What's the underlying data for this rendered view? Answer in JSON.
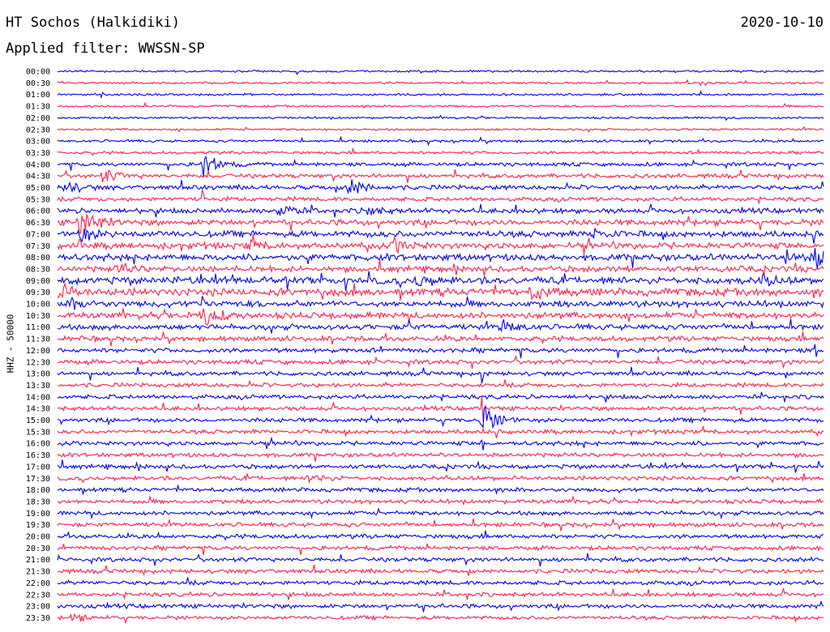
{
  "header": {
    "station": "HT Sochos (Halkidiki)",
    "date": "2020-10-10",
    "filter": "Applied filter: WWSSN-SP"
  },
  "chart_data": {
    "type": "line",
    "title": "HT Sochos (Halkidiki)",
    "subtitle": "Applied filter: WWSSN-SP",
    "ylabel": "HHZ - 50000",
    "xlabel": "",
    "series_colors": [
      "#0000ee",
      "#ff1f4b"
    ],
    "y_tick_labels": [
      "00:00",
      "00:30",
      "01:00",
      "01:30",
      "02:00",
      "02:30",
      "03:00",
      "03:30",
      "04:00",
      "04:30",
      "05:00",
      "05:30",
      "06:00",
      "06:30",
      "07:00",
      "07:30",
      "08:00",
      "08:30",
      "09:00",
      "09:30",
      "10:00",
      "10:30",
      "11:00",
      "11:30",
      "12:00",
      "12:30",
      "13:00",
      "13:30",
      "14:00",
      "14:30",
      "15:00",
      "15:30",
      "16:00",
      "16:30",
      "17:00",
      "17:30",
      "18:00",
      "18:30",
      "19:00",
      "19:30",
      "20:00",
      "20:30",
      "21:00",
      "21:30",
      "22:00",
      "22:30",
      "23:00",
      "23:30"
    ],
    "noise_level": [
      1,
      1,
      1,
      1,
      1,
      1,
      1.2,
      1.4,
      1.8,
      2,
      2.2,
      2,
      2.4,
      2.8,
      3,
      3,
      3.2,
      2.8,
      3.4,
      3.6,
      3,
      3,
      2.6,
      2.4,
      2.2,
      2.2,
      2,
      2,
      2,
      2,
      2,
      2,
      2,
      2,
      2,
      2,
      2,
      2,
      2,
      2,
      2,
      2,
      2,
      2,
      2,
      2,
      2,
      1.8
    ],
    "events": [
      {
        "row": 8,
        "pos": 0.19,
        "amp": 16
      },
      {
        "row": 9,
        "pos": 0.06,
        "amp": 8
      },
      {
        "row": 10,
        "pos": 0.38,
        "amp": 12
      },
      {
        "row": 10,
        "pos": 0.01,
        "amp": 8
      },
      {
        "row": 12,
        "pos": 0.29,
        "amp": 8
      },
      {
        "row": 12,
        "pos": 0.4,
        "amp": 6
      },
      {
        "row": 13,
        "pos": 0.03,
        "amp": 20
      },
      {
        "row": 14,
        "pos": 0.03,
        "amp": 8
      },
      {
        "row": 14,
        "pos": 0.7,
        "amp": 6
      },
      {
        "row": 15,
        "pos": 0.25,
        "amp": 6
      },
      {
        "row": 15,
        "pos": 0.44,
        "amp": 8
      },
      {
        "row": 16,
        "pos": 0.99,
        "amp": 14
      },
      {
        "row": 16,
        "pos": 0.95,
        "amp": 8
      },
      {
        "row": 17,
        "pos": 0.08,
        "amp": 6
      },
      {
        "row": 18,
        "pos": 0.47,
        "amp": 6
      },
      {
        "row": 18,
        "pos": 0.92,
        "amp": 6
      },
      {
        "row": 19,
        "pos": 0.0,
        "amp": 10
      },
      {
        "row": 19,
        "pos": 0.62,
        "amp": 9
      },
      {
        "row": 20,
        "pos": 0.02,
        "amp": 6
      },
      {
        "row": 21,
        "pos": 0.19,
        "amp": 14
      },
      {
        "row": 22,
        "pos": 0.58,
        "amp": 8
      },
      {
        "row": 30,
        "pos": 0.555,
        "amp": 20
      },
      {
        "row": 35,
        "pos": 0.33,
        "amp": 6
      },
      {
        "row": 47,
        "pos": 0.02,
        "amp": 4
      }
    ],
    "spikes": [
      {
        "row": 11,
        "pos": 0.19,
        "amp": 18
      },
      {
        "row": 20,
        "pos": 0.19,
        "amp": 18
      },
      {
        "row": 26,
        "pos": 0.555,
        "amp": 12
      },
      {
        "row": 29,
        "pos": 0.555,
        "amp": 14
      },
      {
        "row": 31,
        "pos": 0.555,
        "amp": 14
      },
      {
        "row": 32,
        "pos": 0.555,
        "amp": 10
      },
      {
        "row": 22,
        "pos": 0.46,
        "amp": 10
      },
      {
        "row": 15,
        "pos": 0.03,
        "amp": 10
      },
      {
        "row": 24,
        "pos": 0.99,
        "amp": 8
      }
    ]
  }
}
